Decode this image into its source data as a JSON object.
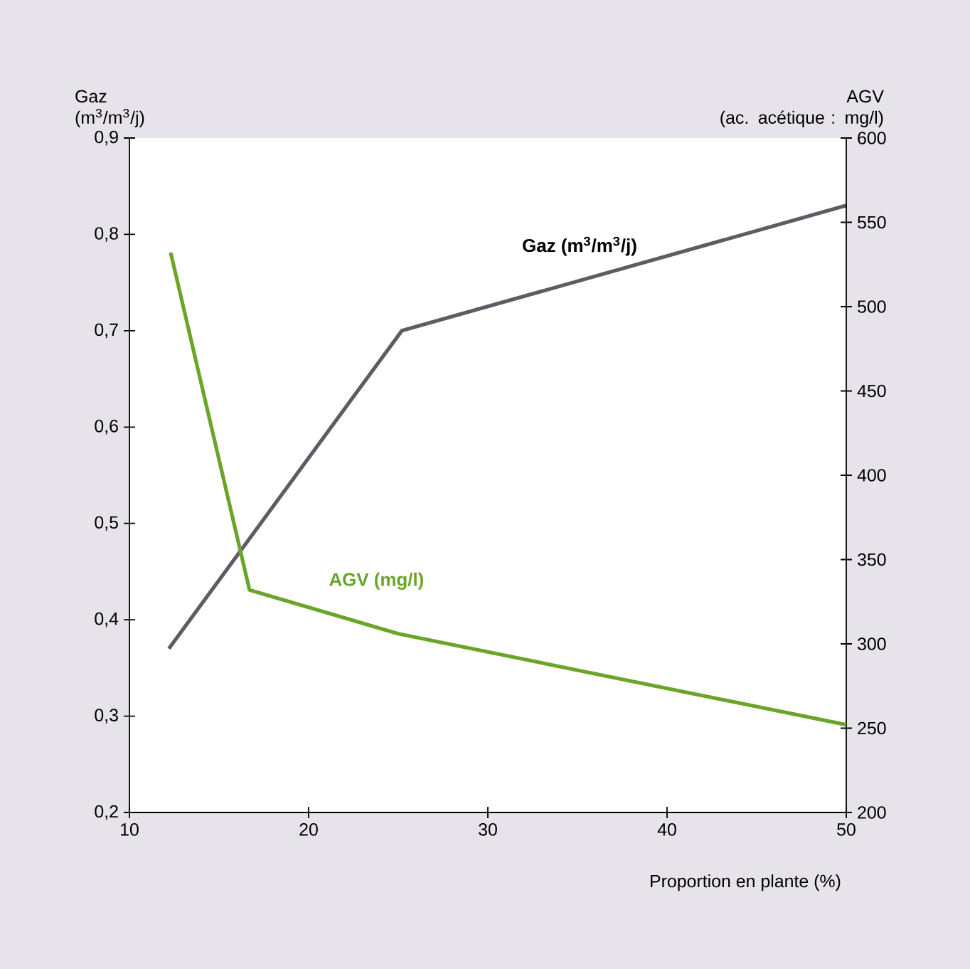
{
  "chart_data": {
    "type": "line",
    "xlabel": "Proportion en plante (%)",
    "ylabel": "Gaz (m$^{3}$/m$^{3}$/j)",
    "y2label": "AGV (ac. acétique : mg/l)",
    "xlim": [
      10,
      50
    ],
    "xticks": [
      10,
      20,
      30,
      40,
      50
    ],
    "ylim": [
      0.2,
      0.9
    ],
    "yticks": [
      {
        "value": 0.2,
        "label": "0,2"
      },
      {
        "value": 0.3,
        "label": "0,3"
      },
      {
        "value": 0.4,
        "label": "0,4"
      },
      {
        "value": 0.5,
        "label": "0,5"
      },
      {
        "value": 0.6,
        "label": "0,6"
      },
      {
        "value": 0.7,
        "label": "0,7"
      },
      {
        "value": 0.8,
        "label": "0,8"
      },
      {
        "value": 0.9,
        "label": "0,9"
      }
    ],
    "y2lim": [
      200,
      600
    ],
    "y2ticks": [
      200,
      250,
      300,
      350,
      400,
      450,
      500,
      550,
      600
    ],
    "grid": false,
    "marker": "none",
    "line_style": "solid",
    "series": [
      {
        "name": "Gaz (m$^{3}$/m$^{3}$/j)",
        "color": "#5f5a63",
        "x": [
          12.2,
          25.2,
          50
        ],
        "values": [
          0.37,
          0.7,
          0.83
        ]
      },
      {
        "name": "AGV (mg/l)",
        "color": "#6aa52a",
        "axis": "y2",
        "x": [
          12.3,
          16.7,
          25,
          50
        ],
        "values": [
          532,
          332,
          306,
          252
        ]
      }
    ]
  }
}
